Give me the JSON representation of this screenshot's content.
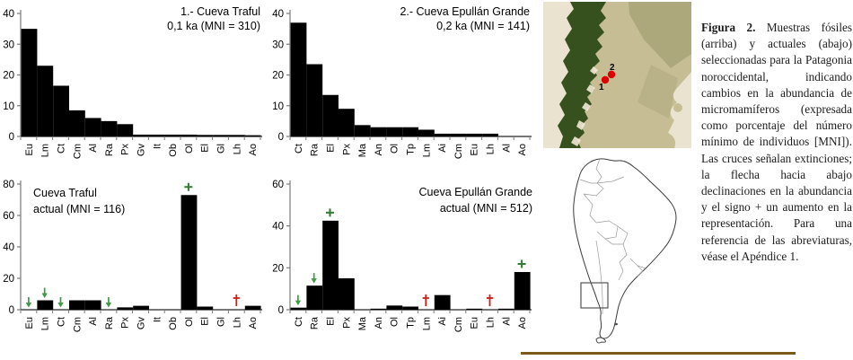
{
  "figure": {
    "caption_label": "Figura 2.",
    "caption_text": " Muestras fósiles (arriba) y actuales (abajo) seleccionadas para la Patagonia noroccidental, indicando cambios en la abundancia de micromamíferos (expresada como porcentaje del número mínimo de individuos [MNI]). Las cruces señalan extinciones; la flecha hacia abajo declinaciones en la abundancia y el signo + un aumento en la representación. Para una referencia de las abreviaturas, véase el Apéndice 1."
  },
  "colors": {
    "bar": "#000000",
    "axis": "#7a7a7a",
    "decline_arrow": "#3f9a44",
    "increase_plus": "#2e7d32",
    "extinction_dagger": "#cf1d17",
    "map_marker": "#dd0000",
    "page_rule": "#7c5b18"
  },
  "chart_data": [
    {
      "id": "cueva-traful-fosil",
      "type": "bar",
      "title_lines": [
        "1.- Cueva Traful",
        "0,1 ka (MNI = 310)"
      ],
      "ylim": [
        0,
        40
      ],
      "yticks": [
        0,
        10,
        20,
        30,
        40
      ],
      "categories": [
        "Eu",
        "Lm",
        "Ct",
        "Cm",
        "Al",
        "Ra",
        "Px",
        "Gv",
        "It",
        "Ob",
        "Ol",
        "El",
        "Gl",
        "Lh",
        "Ao"
      ],
      "values": [
        35,
        23,
        16.5,
        8.5,
        6,
        5,
        4,
        0.6,
        0.6,
        0.6,
        0.6,
        0.5,
        0.5,
        0.5,
        0.4
      ],
      "markers": []
    },
    {
      "id": "cueva-epullan-grande-fosil",
      "type": "bar",
      "title_lines": [
        "2.- Cueva Epullán Grande",
        "0,2 ka (MNI = 141)"
      ],
      "ylim": [
        0,
        40
      ],
      "yticks": [
        0,
        10,
        20,
        30,
        40
      ],
      "categories": [
        "Ct",
        "Ra",
        "El",
        "Px",
        "Ma",
        "An",
        "Ol",
        "Tp",
        "Lm",
        "Ai",
        "Cm",
        "Eu",
        "Lh",
        "Al",
        "Ao"
      ],
      "values": [
        37,
        23.5,
        13.5,
        9,
        3.7,
        3,
        3,
        3,
        2.2,
        0.9,
        0.9,
        0.9,
        0.9,
        0,
        0
      ],
      "markers": []
    },
    {
      "id": "cueva-traful-actual",
      "type": "bar",
      "title_lines": [
        "Cueva Traful",
        "actual (MNI = 116)"
      ],
      "ylim": [
        0,
        80
      ],
      "yticks": [
        0,
        20,
        40,
        60,
        80
      ],
      "categories": [
        "Eu",
        "Lm",
        "Ct",
        "Cm",
        "Al",
        "Ra",
        "Px",
        "Gv",
        "It",
        "Ob",
        "Ol",
        "El",
        "Gl",
        "Lh",
        "Ao"
      ],
      "values": [
        0,
        6,
        0,
        6,
        6,
        0,
        1.5,
        2.5,
        0,
        0,
        73,
        2,
        0,
        0,
        2.5
      ],
      "markers": [
        {
          "category": "Eu",
          "symbol": "arrow-down"
        },
        {
          "category": "Lm",
          "symbol": "arrow-down"
        },
        {
          "category": "Ct",
          "symbol": "arrow-down"
        },
        {
          "category": "Ra",
          "symbol": "arrow-down"
        },
        {
          "category": "Ol",
          "symbol": "plus"
        },
        {
          "category": "Lh",
          "symbol": "dagger"
        }
      ]
    },
    {
      "id": "cueva-epullan-grande-actual",
      "type": "bar",
      "title_lines": [
        "Cueva Epullán Grande",
        "actual (MNI = 512)"
      ],
      "ylim": [
        0,
        60
      ],
      "yticks": [
        0,
        20,
        40,
        60
      ],
      "categories": [
        "Ct",
        "Ra",
        "El",
        "Px",
        "Ma",
        "An",
        "Ol",
        "Tp",
        "Lm",
        "Ai",
        "Cm",
        "Eu",
        "Lh",
        "Al",
        "Ao"
      ],
      "values": [
        1,
        11.5,
        42.5,
        15,
        0,
        0.5,
        2,
        1.5,
        0,
        7,
        0,
        0.5,
        0,
        0.5,
        18
      ],
      "markers": [
        {
          "category": "Ct",
          "symbol": "arrow-down"
        },
        {
          "category": "Ra",
          "symbol": "arrow-down"
        },
        {
          "category": "El",
          "symbol": "plus"
        },
        {
          "category": "Lm",
          "symbol": "dagger"
        },
        {
          "category": "Lh",
          "symbol": "dagger"
        },
        {
          "category": "Ao",
          "symbol": "plus"
        }
      ]
    }
  ],
  "maps": {
    "satellite": {
      "site_markers": [
        {
          "label": "1"
        },
        {
          "label": "2"
        }
      ]
    },
    "south_america": {
      "inset_box": "study-area"
    }
  }
}
